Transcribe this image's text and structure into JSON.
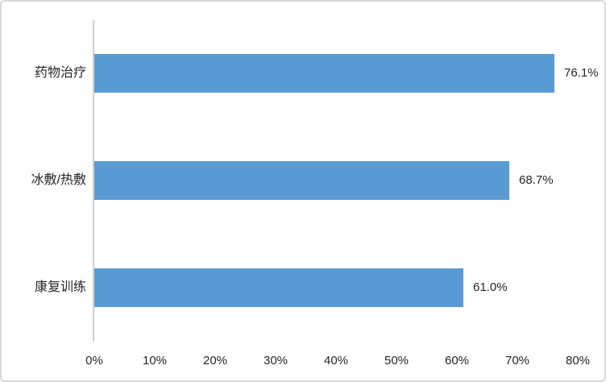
{
  "chart_data": {
    "type": "bar",
    "orientation": "horizontal",
    "title": "",
    "xlabel": "",
    "ylabel": "",
    "categories": [
      "药物治疗",
      "冰敷/热敷",
      "康复训练"
    ],
    "values": [
      76.1,
      68.7,
      61.0
    ],
    "value_labels": [
      "76.1%",
      "68.7%",
      "61.0%"
    ],
    "x_tick_labels": [
      "0%",
      "10%",
      "20%",
      "30%",
      "40%",
      "50%",
      "60%",
      "70%",
      "80%"
    ],
    "x_tick_values": [
      0,
      10,
      20,
      30,
      40,
      50,
      60,
      70,
      80
    ],
    "xlim": [
      0,
      80
    ],
    "grid": false,
    "legend": false,
    "colors": {
      "bar": "#5B9BD5",
      "axis_line": "#D0D0D0",
      "border": "#D9D9D9",
      "text": "#262626",
      "background": "#FFFFFF"
    }
  }
}
